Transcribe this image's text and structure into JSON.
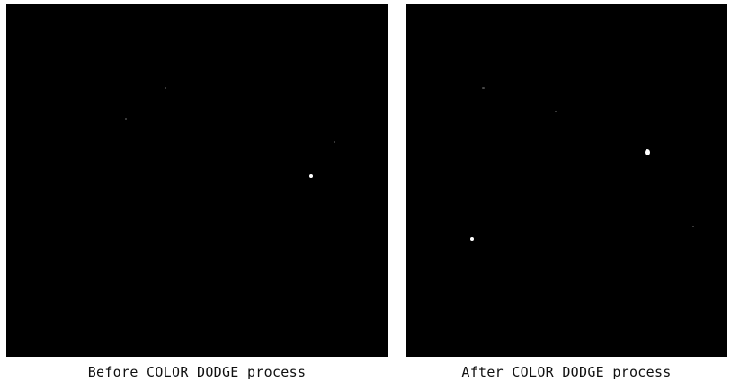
{
  "captions": {
    "before": "Before COLOR DODGE process",
    "after": "After COLOR DODGE process"
  },
  "colors": {
    "background": "#ffffff",
    "image_fill": "#000000",
    "bright_spot": "#ffffff",
    "caption_text": "#111111"
  }
}
